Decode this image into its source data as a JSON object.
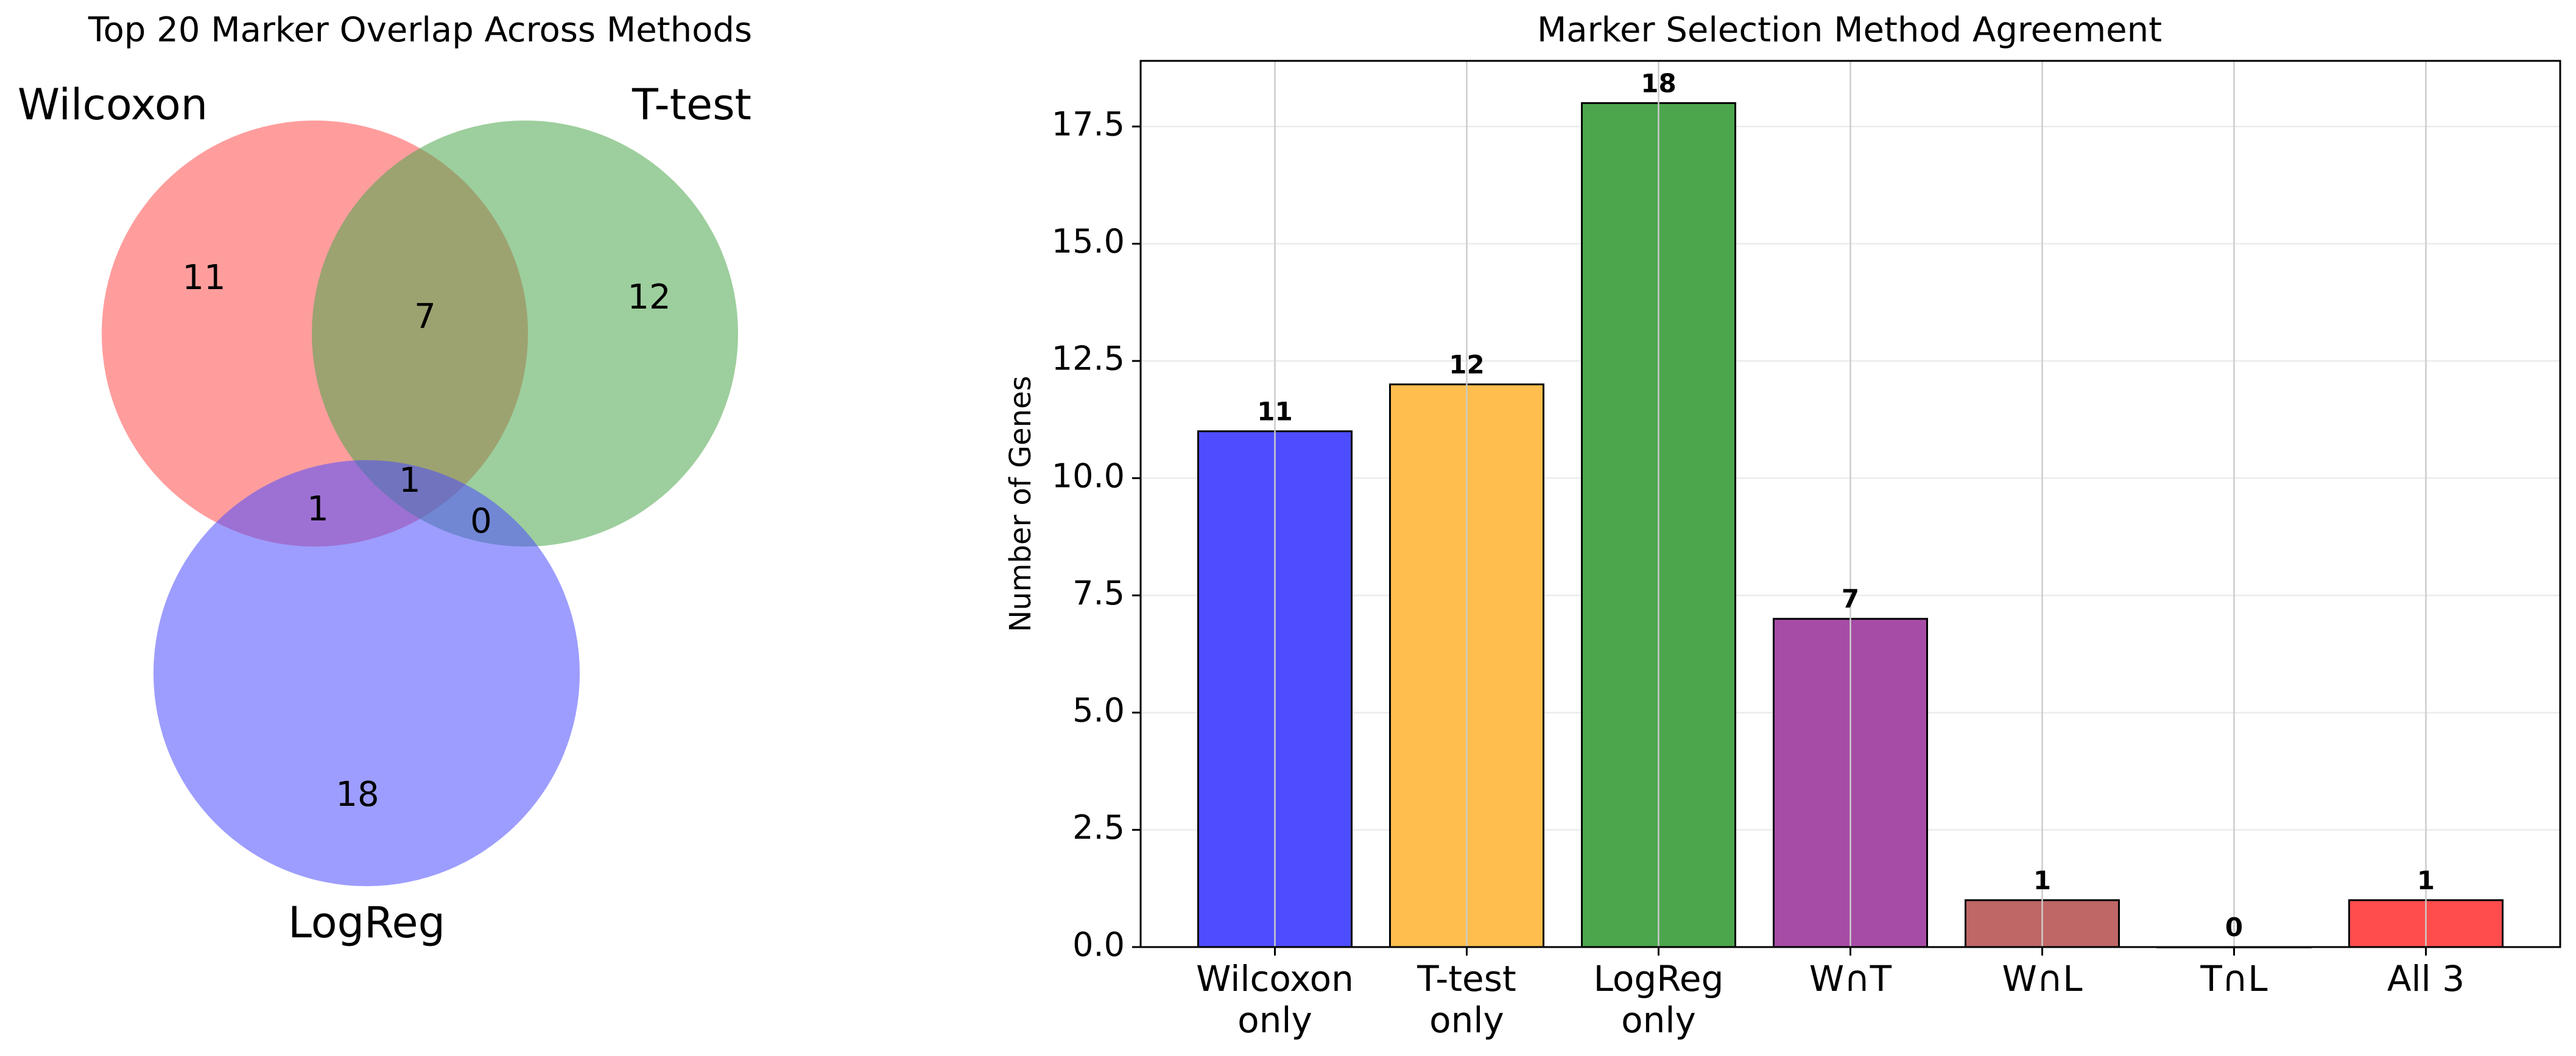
{
  "chart_data": [
    {
      "type": "venn",
      "title": "Top 20 Marker Overlap Across Methods",
      "sets": [
        {
          "name": "Wilcoxon",
          "color": "#ff4d4d"
        },
        {
          "name": "T-test",
          "color": "#4ca64c"
        },
        {
          "name": "LogReg",
          "color": "#4d4dff"
        }
      ],
      "regions": [
        {
          "sets": [
            "Wilcoxon"
          ],
          "value": 11
        },
        {
          "sets": [
            "T-test"
          ],
          "value": 12
        },
        {
          "sets": [
            "LogReg"
          ],
          "value": 18
        },
        {
          "sets": [
            "Wilcoxon",
            "T-test"
          ],
          "value": 7
        },
        {
          "sets": [
            "Wilcoxon",
            "LogReg"
          ],
          "value": 1
        },
        {
          "sets": [
            "T-test",
            "LogReg"
          ],
          "value": 0
        },
        {
          "sets": [
            "Wilcoxon",
            "T-test",
            "LogReg"
          ],
          "value": 1
        }
      ]
    },
    {
      "type": "bar",
      "title": "Marker Selection Method Agreement",
      "xlabel": "",
      "ylabel": "Number of Genes",
      "categories": [
        [
          "Wilcoxon",
          "only"
        ],
        [
          "T-test",
          "only"
        ],
        [
          "LogReg",
          "only"
        ],
        [
          "W∩T"
        ],
        [
          "W∩L"
        ],
        [
          "T∩L"
        ],
        [
          "All 3"
        ]
      ],
      "values": [
        11,
        12,
        18,
        7,
        1,
        0,
        1
      ],
      "data_labels": [
        "11",
        "12",
        "18",
        "7",
        "1",
        "0",
        "1"
      ],
      "colors": [
        "#4d4dff",
        "#ffbe4d",
        "#4ca64c",
        "#a64ca6",
        "#bf6666",
        "#4d4d4d",
        "#ff4d4d"
      ],
      "ylim": [
        0,
        18.9
      ],
      "yticks": [
        0.0,
        2.5,
        5.0,
        7.5,
        10.0,
        12.5,
        15.0,
        17.5
      ],
      "ytick_labels": [
        "0.0",
        "2.5",
        "5.0",
        "7.5",
        "10.0",
        "12.5",
        "15.0",
        "17.5"
      ],
      "grid": true
    }
  ]
}
